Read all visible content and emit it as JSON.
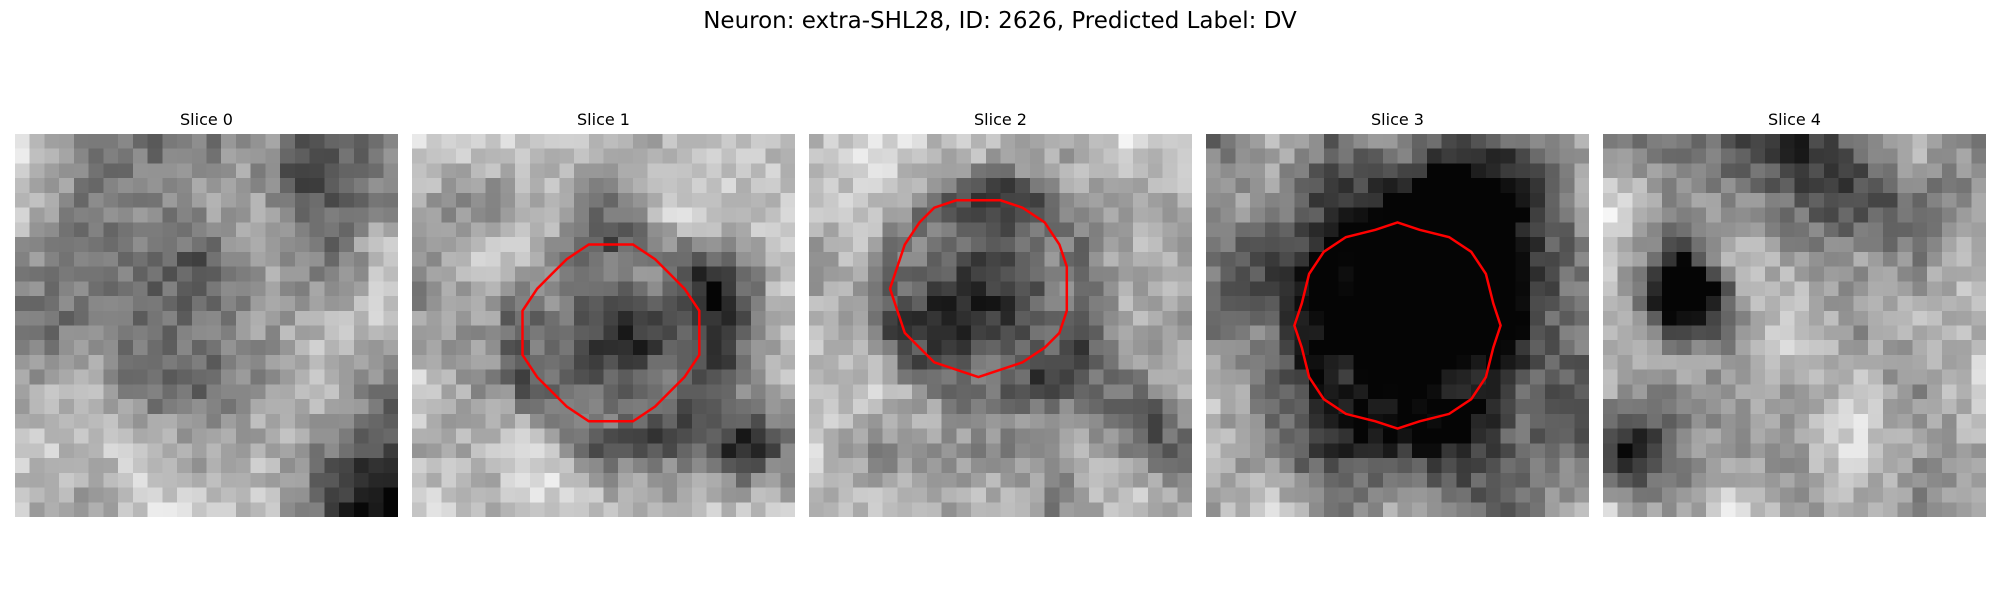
{
  "figure": {
    "title": "Neuron: extra-SHL28, ID: 2626, Predicted Label: DV"
  },
  "slices": [
    {
      "label": "Slice 0",
      "seed": 11,
      "contour": false,
      "blob": [
        0.38,
        0.33,
        0.22,
        0.12
      ],
      "dark": [
        [
          0.92,
          0.92,
          0.14,
          0.4
        ],
        [
          0.75,
          0.1,
          0.1,
          0.25
        ]
      ]
    },
    {
      "label": "Slice 1",
      "seed": 23,
      "contour": true,
      "blob": [
        0.52,
        0.52,
        0.12,
        0.28
      ],
      "dark": [
        [
          0.8,
          0.35,
          0.08,
          0.3
        ],
        [
          0.85,
          0.8,
          0.06,
          0.25
        ]
      ]
    },
    {
      "label": "Slice 2",
      "seed": 37,
      "contour": true,
      "blob": [
        0.45,
        0.4,
        0.18,
        0.26
      ],
      "dark": [
        [
          0.85,
          0.75,
          0.06,
          0.2
        ]
      ]
    },
    {
      "label": "Slice 3",
      "seed": 53,
      "contour": true,
      "blob": [
        0.5,
        0.5,
        0.26,
        0.38
      ],
      "dark": [
        [
          0.65,
          0.18,
          0.16,
          0.3
        ]
      ]
    },
    {
      "label": "Slice 4",
      "seed": 71,
      "contour": false,
      "blob": [
        0.2,
        0.4,
        0.07,
        0.45
      ],
      "dark": [
        [
          0.55,
          0.1,
          0.16,
          0.25
        ],
        [
          0.05,
          0.8,
          0.08,
          0.3
        ]
      ]
    }
  ],
  "colors": {
    "contour": "#ff0000"
  }
}
